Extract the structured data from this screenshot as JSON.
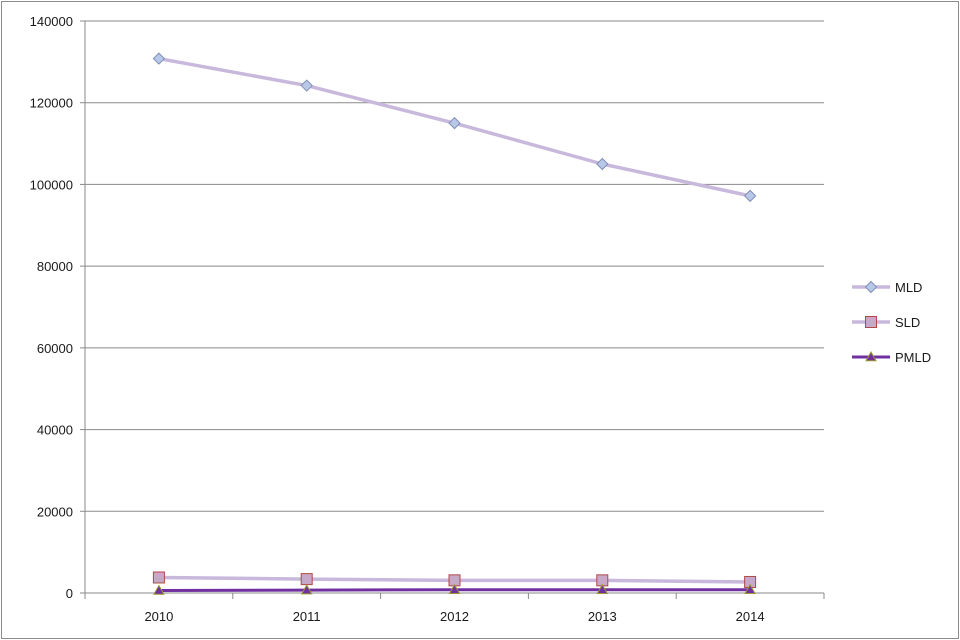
{
  "chart_data": {
    "type": "line",
    "title": "",
    "xlabel": "",
    "ylabel": "",
    "categories": [
      "2010",
      "2011",
      "2012",
      "2013",
      "2014"
    ],
    "ylim": [
      0,
      140000
    ],
    "yticks": [
      "0",
      "20000",
      "40000",
      "60000",
      "80000",
      "100000",
      "120000",
      "140000"
    ],
    "grid": true,
    "legend_position": "right",
    "series": [
      {
        "name": "MLD",
        "values": [
          130800,
          124200,
          115000,
          105000,
          97200
        ],
        "line_color": "#c8b8dc",
        "marker": "diamond",
        "marker_fill": "#b8c8e6",
        "marker_stroke": "#7f8fb8"
      },
      {
        "name": "SLD",
        "values": [
          3800,
          3400,
          3100,
          3100,
          2700
        ],
        "line_color": "#c8b8dc",
        "marker": "square",
        "marker_fill": "#c8a8c8",
        "marker_stroke": "#b04848"
      },
      {
        "name": "PMLD",
        "values": [
          600,
          700,
          800,
          800,
          800
        ],
        "line_color": "#7030a0",
        "marker": "triangle",
        "marker_fill": "#7030a0",
        "marker_stroke": "#9a9a30"
      }
    ]
  }
}
